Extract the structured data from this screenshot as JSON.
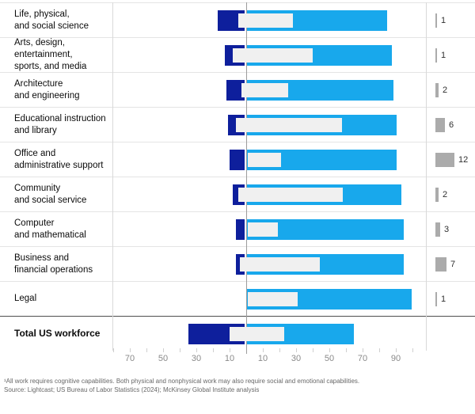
{
  "chart_data": {
    "type": "bar",
    "orientation": "horizontal-diverging",
    "axis": {
      "center_value": 0,
      "tick_step": 10,
      "tick_min": -80,
      "tick_max": 100,
      "tick_labels": [
        {
          "v": -70,
          "t": "70"
        },
        {
          "v": -50,
          "t": "50"
        },
        {
          "v": -30,
          "t": "30"
        },
        {
          "v": -10,
          "t": "10"
        },
        {
          "v": 10,
          "t": "10"
        },
        {
          "v": 30,
          "t": "30"
        },
        {
          "v": 50,
          "t": "50"
        },
        {
          "v": 70,
          "t": "70"
        },
        {
          "v": 90,
          "t": "90"
        }
      ]
    },
    "rows": [
      {
        "label_lines": [
          "Life, physical,",
          "and social science"
        ],
        "left_value": 17,
        "band_start": -5,
        "band_end": 28,
        "right_value": 85,
        "share": 1,
        "total": false
      },
      {
        "label_lines": [
          "Arts, design, entertainment,",
          "sports, and media"
        ],
        "left_value": 13,
        "band_start": -8,
        "band_end": 40,
        "right_value": 88,
        "share": 1,
        "total": false
      },
      {
        "label_lines": [
          "Architecture",
          "and engineering"
        ],
        "left_value": 12,
        "band_start": -3,
        "band_end": 25,
        "right_value": 89,
        "share": 2,
        "total": false
      },
      {
        "label_lines": [
          "Educational instruction",
          "and library"
        ],
        "left_value": 11,
        "band_start": -6,
        "band_end": 58,
        "right_value": 91,
        "share": 6,
        "total": false
      },
      {
        "label_lines": [
          "Office and",
          "administrative support"
        ],
        "left_value": 10,
        "band_start": 0,
        "band_end": 20,
        "right_value": 91,
        "share": 12,
        "total": false
      },
      {
        "label_lines": [
          "Community",
          "and social service"
        ],
        "left_value": 8,
        "band_start": -5,
        "band_end": 58,
        "right_value": 94,
        "share": 2,
        "total": false
      },
      {
        "label_lines": [
          "Computer",
          "and mathematical"
        ],
        "left_value": 6,
        "band_start": 0,
        "band_end": 18,
        "right_value": 95,
        "share": 3,
        "total": false
      },
      {
        "label_lines": [
          "Business and",
          "financial operations"
        ],
        "left_value": 6,
        "band_start": -4,
        "band_end": 44,
        "right_value": 95,
        "share": 7,
        "total": false
      },
      {
        "label_lines": [
          "Legal"
        ],
        "left_value": 0,
        "band_start": 0,
        "band_end": 30,
        "right_value": 100,
        "share": 1,
        "total": false
      },
      {
        "label_lines": [
          "Total US workforce"
        ],
        "left_value": 35,
        "band_start": -10,
        "band_end": 23,
        "right_value": 65,
        "share": null,
        "total": true
      }
    ],
    "footnote": "¹All work requires cognitive capabilities. Both physical and nonphysical work may also require social and emotional capabilities.",
    "source": "Source: Lightcast; US Bureau of Labor Statistics (2024); McKinsey Global Institute analysis"
  },
  "colors": {
    "left_bar": "#0e1f9c",
    "right_bar": "#18a8ec",
    "band_bar": "#f0f0f0",
    "share_bar": "#ababab",
    "row_divider": "#e4e4e4",
    "total_divider": "#4f4f4f",
    "column_divider": "#d9d9d9",
    "axis_line": "#9c9c9c",
    "tick": "#cfcfcf"
  }
}
